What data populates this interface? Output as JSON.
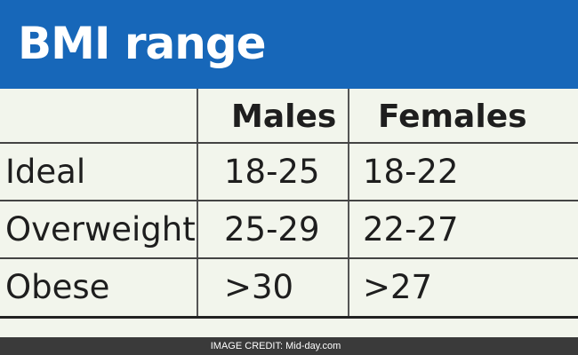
{
  "header": {
    "title": "BMI range"
  },
  "table": {
    "columns": [
      "Males",
      "Females"
    ],
    "rows": [
      [
        "Ideal",
        "18-25",
        "18-22"
      ],
      [
        "Overweight",
        "25-29",
        "22-27"
      ],
      [
        "Obese",
        ">30",
        ">27"
      ]
    ]
  },
  "footer": {
    "credit": "IMAGE CREDIT: Mid-day.com"
  }
}
